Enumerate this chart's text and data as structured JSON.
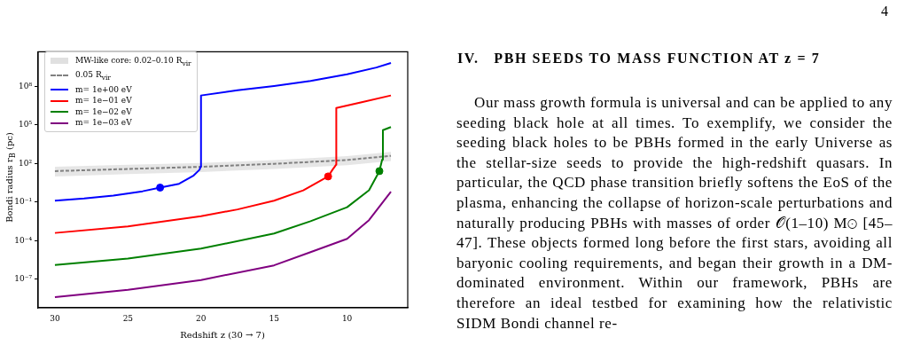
{
  "chart_data": {
    "type": "line",
    "xlabel": "Redshift z (30 → 7)",
    "ylabel": "Bondi radius r$_{B}$ (pc)",
    "xlim": [
      31.15,
      5.85
    ],
    "xticks": [
      30,
      25,
      20,
      15,
      10
    ],
    "ylim": [
      6e-10,
      50000000000.0
    ],
    "yticks": [
      {
        "value": 1e-07,
        "label": "10⁻⁷"
      },
      {
        "value": 0.0001,
        "label": "10⁻⁴"
      },
      {
        "value": 0.1,
        "label": "10⁻¹"
      },
      {
        "value": 100,
        "label": "10²"
      },
      {
        "value": 100000,
        "label": "10⁵"
      },
      {
        "value": 100000000,
        "label": "10⁸"
      }
    ],
    "log": "y",
    "grid": false,
    "legend": "top left",
    "marker": "none",
    "series": [
      {
        "name": "MW-like core: 0.02–0.10 R$_{vir}$",
        "type": "area",
        "color": "#e0e0e0",
        "x": [
          30,
          25,
          20,
          15,
          10,
          7
        ],
        "values": [
          null,
          null,
          null,
          null,
          null,
          null
        ],
        "lower": [
          10,
          15,
          22,
          38,
          76,
          160
        ],
        "upper": [
          56,
          80,
          110,
          190,
          380,
          800
        ]
      },
      {
        "name": "0.05 R$_{vir}$",
        "line_style": "dashed",
        "color": "#808080",
        "x": [
          30,
          25,
          20,
          15,
          10,
          7
        ],
        "values": [
          26,
          38,
          56,
          96,
          190,
          400
        ]
      },
      {
        "name": "m= 1e+00 eV",
        "color": "#0000ff",
        "x": [
          30,
          28,
          26,
          24,
          22.8,
          21.5,
          20.5,
          20.1,
          20.02,
          20,
          17.5,
          15,
          12.5,
          10,
          8,
          7
        ],
        "values": [
          0.13,
          0.19,
          0.32,
          0.7,
          1.35,
          2.7,
          12,
          33,
          60,
          20000000,
          50000000,
          110000000,
          270000000,
          900000000,
          3000000000,
          6800000000
        ]
      },
      {
        "name": "m= 1e−01 eV",
        "color": "#ff0000",
        "x": [
          30,
          25,
          20,
          17.5,
          15,
          13,
          11.3,
          11,
          10.76,
          10.74,
          9,
          7
        ],
        "values": [
          0.0004,
          0.0013,
          0.008,
          0.027,
          0.13,
          0.83,
          10,
          33,
          80,
          2100000,
          6000000,
          20000000
        ]
      },
      {
        "name": "m= 1e−02 eV",
        "color": "#008000",
        "x": [
          30,
          25,
          20,
          15,
          12.5,
          10,
          8.5,
          7.79,
          7.6,
          7.55,
          7
        ],
        "values": [
          1.3e-06,
          4e-06,
          2.4e-05,
          0.00036,
          0.0033,
          0.04,
          0.83,
          26,
          200,
          40000,
          70000
        ]
      },
      {
        "name": "m= 1e−03 eV",
        "color": "#800080",
        "x": [
          30,
          25,
          20,
          15,
          12.5,
          10,
          8.5,
          7
        ],
        "values": [
          4e-09,
          1.5e-08,
          8.7e-08,
          1.2e-06,
          1.3e-05,
          0.00014,
          0.004,
          0.65
        ]
      },
      {
        "type": "scatter",
        "marker": "circle",
        "x": [
          22.8,
          11.3,
          7.79
        ],
        "values": [
          1.35,
          10,
          26
        ],
        "colors": [
          "#0000ff",
          "#ff0000",
          "#008000"
        ]
      }
    ],
    "annotations": [
      "4",
      "IV.   PBH SEEDS TO MASS FUNCTION AT z = 7",
      "Our mass growth formula is universal and can be applied to any seeding black hole at all times. To exemplify, we consider the seeding black holes to be PBHs formed in the early Universe as the stellar-size seeds to provide the high-redshift quasars. In particular, the QCD phase transition briefly softens the EoS of the plasma, enhancing the collapse of horizon-scale perturbations and naturally producing PBHs with masses of order 𝒪(1–10) M⊙ [45–47]. These objects formed long before the first stars, avoiding all baryonic cooling requirements, and began their growth in a DM-dominated environment. Within our framework, PBHs are therefore an ideal testbed for examining how the relativistic SIDM Bondi channel re-"
    ]
  }
}
